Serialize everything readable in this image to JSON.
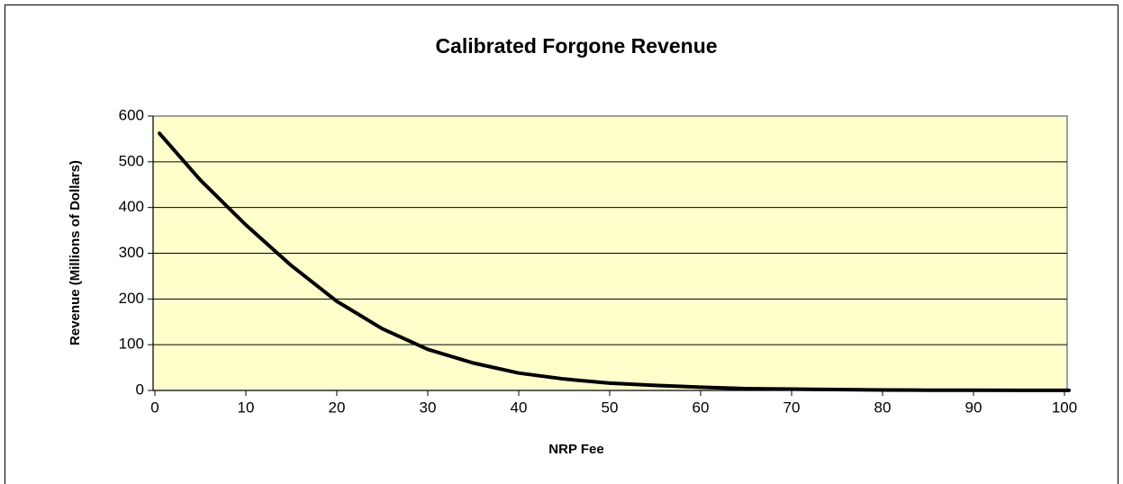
{
  "chart_data": {
    "type": "line",
    "title": "Calibrated Forgone Revenue",
    "xlabel": "NRP Fee",
    "ylabel": "Revenue (Millions of Dollars)",
    "x": [
      0.5,
      5,
      10,
      15,
      20,
      25,
      30,
      35,
      40,
      45,
      50,
      55,
      60,
      65,
      70,
      75,
      80,
      85,
      90,
      95,
      100.5
    ],
    "series": [
      {
        "name": "Revenue",
        "color": "#000000",
        "values": [
          562,
          460,
          362,
          273,
          195,
          135,
          90,
          60,
          38,
          25,
          16,
          11,
          7,
          4,
          3,
          2,
          1,
          0.6,
          0.4,
          0.2,
          0.1
        ]
      }
    ],
    "xlim": [
      0,
      100
    ],
    "xticks": [
      0,
      10,
      20,
      30,
      40,
      50,
      60,
      70,
      80,
      90,
      100
    ],
    "ylim": [
      0,
      600
    ],
    "yticks": [
      0,
      100,
      200,
      300,
      400,
      500,
      600
    ],
    "grid": true,
    "plot_background": "#ffffcc"
  }
}
